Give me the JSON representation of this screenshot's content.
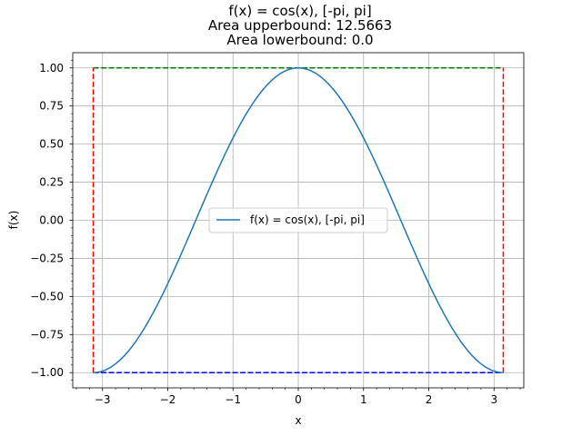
{
  "chart_data": {
    "type": "line",
    "title": [
      "f(x) = cos(x), [-pi, pi]",
      "Area upperbound: 12.5663",
      "Area lowerbound: 0.0"
    ],
    "xlabel": "x",
    "ylabel": "f(x)",
    "xlim": [
      -3.4557,
      3.4557
    ],
    "ylim": [
      -1.1,
      1.1
    ],
    "grid": true,
    "xticks": [
      -3,
      -2,
      -1,
      0,
      1,
      2,
      3
    ],
    "xtick_labels": [
      "−3",
      "−2",
      "−1",
      "0",
      "1",
      "2",
      "3"
    ],
    "yticks": [
      -1.0,
      -0.75,
      -0.5,
      -0.25,
      0.0,
      0.25,
      0.5,
      0.75,
      1.0
    ],
    "ytick_labels": [
      "−1.00",
      "−0.75",
      "−0.50",
      "−0.25",
      "0.00",
      "0.25",
      "0.50",
      "0.75",
      "1.00"
    ],
    "legend": {
      "position": "center",
      "entries": [
        "f(x) = cos(x), [-pi, pi]"
      ]
    },
    "series": [
      {
        "name": "f(x) = cos(x), [-pi, pi]",
        "function": "cos(x)",
        "x_range": [
          -3.14159,
          3.14159
        ],
        "color": "#1f77b4",
        "style": "solid"
      }
    ],
    "bounds": [
      {
        "kind": "upper",
        "y": 1.0,
        "x_range": [
          -3.14159,
          3.14159
        ],
        "color": "#008000",
        "style": "dashed"
      },
      {
        "kind": "lower",
        "y": -1.0,
        "x_range": [
          -3.14159,
          3.14159
        ],
        "color": "#0000ff",
        "style": "dashed"
      },
      {
        "kind": "left-edge",
        "x": -3.14159,
        "y_range": [
          -1.0,
          1.0
        ],
        "color": "#ff0000",
        "style": "dashed"
      },
      {
        "kind": "right-edge",
        "x": 3.14159,
        "y_range": [
          -1.0,
          1.0
        ],
        "color": "#ff0000",
        "style": "dashed"
      }
    ]
  }
}
